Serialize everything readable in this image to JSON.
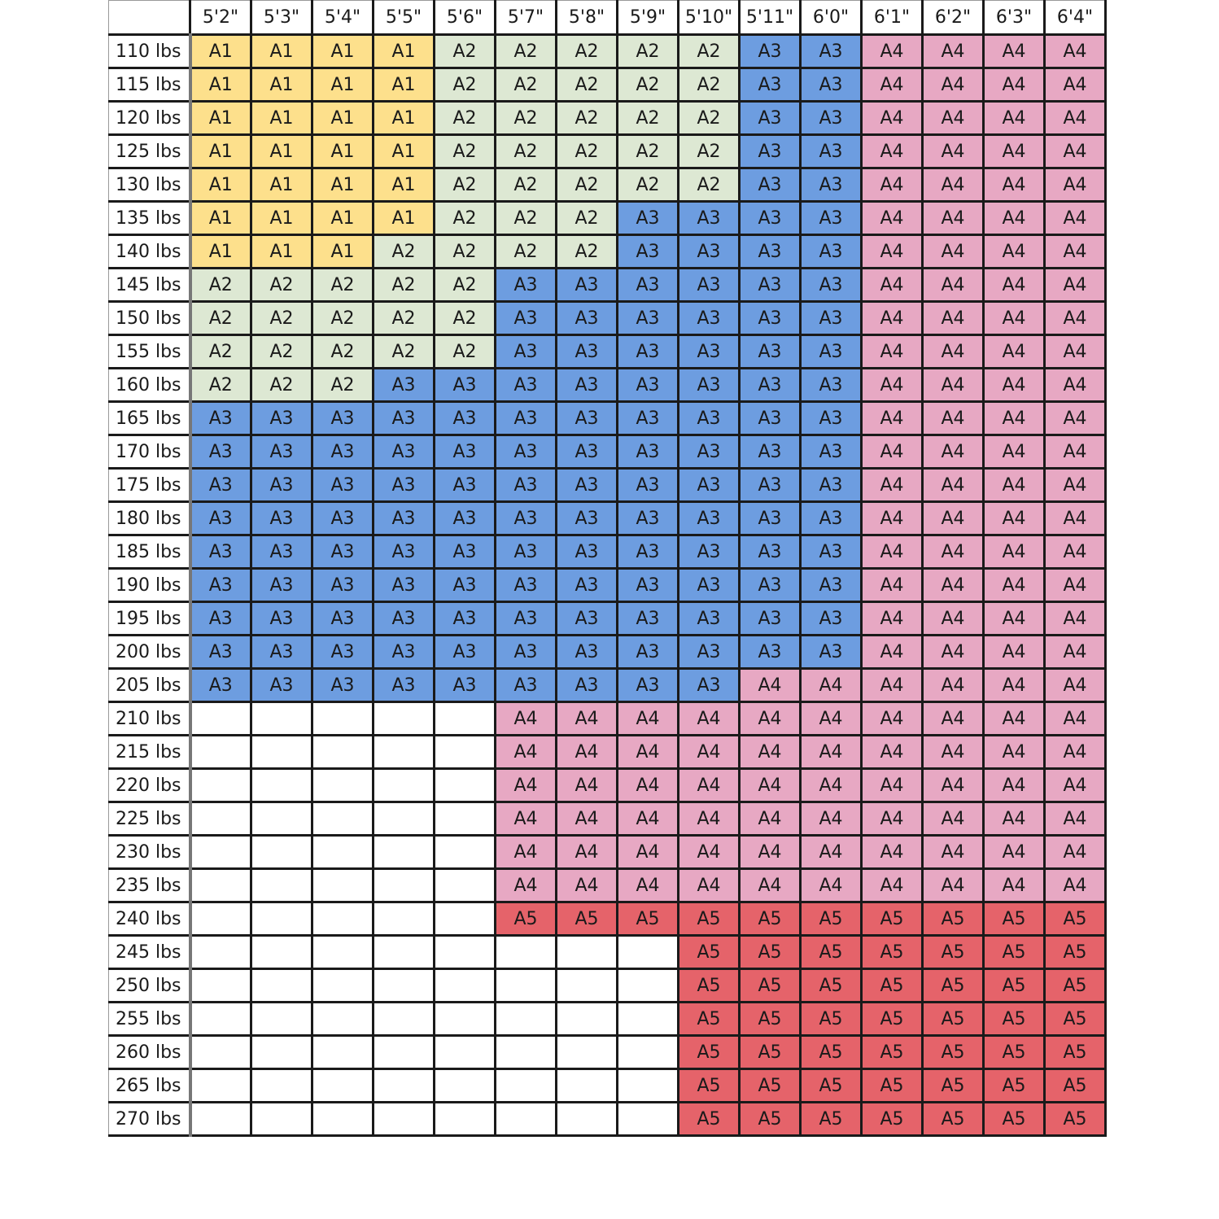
{
  "chart_data": {
    "type": "table",
    "columns": [
      "5'2\"",
      "5'3\"",
      "5'4\"",
      "5'5\"",
      "5'6\"",
      "5'7\"",
      "5'8\"",
      "5'9\"",
      "5'10\"",
      "5'11\"",
      "6'0\"",
      "6'1\"",
      "6'2\"",
      "6'3\"",
      "6'4\""
    ],
    "rows": [
      {
        "label": "110 lbs",
        "cells": [
          "A1",
          "A1",
          "A1",
          "A1",
          "A2",
          "A2",
          "A2",
          "A2",
          "A2",
          "A3",
          "A3",
          "A4",
          "A4",
          "A4",
          "A4"
        ]
      },
      {
        "label": "115 lbs",
        "cells": [
          "A1",
          "A1",
          "A1",
          "A1",
          "A2",
          "A2",
          "A2",
          "A2",
          "A2",
          "A3",
          "A3",
          "A4",
          "A4",
          "A4",
          "A4"
        ]
      },
      {
        "label": "120 lbs",
        "cells": [
          "A1",
          "A1",
          "A1",
          "A1",
          "A2",
          "A2",
          "A2",
          "A2",
          "A2",
          "A3",
          "A3",
          "A4",
          "A4",
          "A4",
          "A4"
        ]
      },
      {
        "label": "125 lbs",
        "cells": [
          "A1",
          "A1",
          "A1",
          "A1",
          "A2",
          "A2",
          "A2",
          "A2",
          "A2",
          "A3",
          "A3",
          "A4",
          "A4",
          "A4",
          "A4"
        ]
      },
      {
        "label": "130 lbs",
        "cells": [
          "A1",
          "A1",
          "A1",
          "A1",
          "A2",
          "A2",
          "A2",
          "A2",
          "A2",
          "A3",
          "A3",
          "A4",
          "A4",
          "A4",
          "A4"
        ]
      },
      {
        "label": "135 lbs",
        "cells": [
          "A1",
          "A1",
          "A1",
          "A1",
          "A2",
          "A2",
          "A2",
          "A3",
          "A3",
          "A3",
          "A3",
          "A4",
          "A4",
          "A4",
          "A4"
        ]
      },
      {
        "label": "140 lbs",
        "cells": [
          "A1",
          "A1",
          "A1",
          "A2",
          "A2",
          "A2",
          "A2",
          "A3",
          "A3",
          "A3",
          "A3",
          "A4",
          "A4",
          "A4",
          "A4"
        ]
      },
      {
        "label": "145 lbs",
        "cells": [
          "A2",
          "A2",
          "A2",
          "A2",
          "A2",
          "A3",
          "A3",
          "A3",
          "A3",
          "A3",
          "A3",
          "A4",
          "A4",
          "A4",
          "A4"
        ]
      },
      {
        "label": "150 lbs",
        "cells": [
          "A2",
          "A2",
          "A2",
          "A2",
          "A2",
          "A3",
          "A3",
          "A3",
          "A3",
          "A3",
          "A3",
          "A4",
          "A4",
          "A4",
          "A4"
        ]
      },
      {
        "label": "155 lbs",
        "cells": [
          "A2",
          "A2",
          "A2",
          "A2",
          "A2",
          "A3",
          "A3",
          "A3",
          "A3",
          "A3",
          "A3",
          "A4",
          "A4",
          "A4",
          "A4"
        ]
      },
      {
        "label": "160 lbs",
        "cells": [
          "A2",
          "A2",
          "A2",
          "A3",
          "A3",
          "A3",
          "A3",
          "A3",
          "A3",
          "A3",
          "A3",
          "A4",
          "A4",
          "A4",
          "A4"
        ]
      },
      {
        "label": "165 lbs",
        "cells": [
          "A3",
          "A3",
          "A3",
          "A3",
          "A3",
          "A3",
          "A3",
          "A3",
          "A3",
          "A3",
          "A3",
          "A4",
          "A4",
          "A4",
          "A4"
        ]
      },
      {
        "label": "170 lbs",
        "cells": [
          "A3",
          "A3",
          "A3",
          "A3",
          "A3",
          "A3",
          "A3",
          "A3",
          "A3",
          "A3",
          "A3",
          "A4",
          "A4",
          "A4",
          "A4"
        ]
      },
      {
        "label": "175 lbs",
        "cells": [
          "A3",
          "A3",
          "A3",
          "A3",
          "A3",
          "A3",
          "A3",
          "A3",
          "A3",
          "A3",
          "A3",
          "A4",
          "A4",
          "A4",
          "A4"
        ]
      },
      {
        "label": "180 lbs",
        "cells": [
          "A3",
          "A3",
          "A3",
          "A3",
          "A3",
          "A3",
          "A3",
          "A3",
          "A3",
          "A3",
          "A3",
          "A4",
          "A4",
          "A4",
          "A4"
        ]
      },
      {
        "label": "185 lbs",
        "cells": [
          "A3",
          "A3",
          "A3",
          "A3",
          "A3",
          "A3",
          "A3",
          "A3",
          "A3",
          "A3",
          "A3",
          "A4",
          "A4",
          "A4",
          "A4"
        ]
      },
      {
        "label": "190 lbs",
        "cells": [
          "A3",
          "A3",
          "A3",
          "A3",
          "A3",
          "A3",
          "A3",
          "A3",
          "A3",
          "A3",
          "A3",
          "A4",
          "A4",
          "A4",
          "A4"
        ]
      },
      {
        "label": "195 lbs",
        "cells": [
          "A3",
          "A3",
          "A3",
          "A3",
          "A3",
          "A3",
          "A3",
          "A3",
          "A3",
          "A3",
          "A3",
          "A4",
          "A4",
          "A4",
          "A4"
        ]
      },
      {
        "label": "200 lbs",
        "cells": [
          "A3",
          "A3",
          "A3",
          "A3",
          "A3",
          "A3",
          "A3",
          "A3",
          "A3",
          "A3",
          "A3",
          "A4",
          "A4",
          "A4",
          "A4"
        ]
      },
      {
        "label": "205 lbs",
        "cells": [
          "A3",
          "A3",
          "A3",
          "A3",
          "A3",
          "A3",
          "A3",
          "A3",
          "A3",
          "A4",
          "A4",
          "A4",
          "A4",
          "A4",
          "A4"
        ]
      },
      {
        "label": "210 lbs",
        "cells": [
          "",
          "",
          "",
          "",
          "",
          "A4",
          "A4",
          "A4",
          "A4",
          "A4",
          "A4",
          "A4",
          "A4",
          "A4",
          "A4"
        ]
      },
      {
        "label": "215 lbs",
        "cells": [
          "",
          "",
          "",
          "",
          "",
          "A4",
          "A4",
          "A4",
          "A4",
          "A4",
          "A4",
          "A4",
          "A4",
          "A4",
          "A4"
        ]
      },
      {
        "label": "220 lbs",
        "cells": [
          "",
          "",
          "",
          "",
          "",
          "A4",
          "A4",
          "A4",
          "A4",
          "A4",
          "A4",
          "A4",
          "A4",
          "A4",
          "A4"
        ]
      },
      {
        "label": "225 lbs",
        "cells": [
          "",
          "",
          "",
          "",
          "",
          "A4",
          "A4",
          "A4",
          "A4",
          "A4",
          "A4",
          "A4",
          "A4",
          "A4",
          "A4"
        ]
      },
      {
        "label": "230 lbs",
        "cells": [
          "",
          "",
          "",
          "",
          "",
          "A4",
          "A4",
          "A4",
          "A4",
          "A4",
          "A4",
          "A4",
          "A4",
          "A4",
          "A4"
        ]
      },
      {
        "label": "235 lbs",
        "cells": [
          "",
          "",
          "",
          "",
          "",
          "A4",
          "A4",
          "A4",
          "A4",
          "A4",
          "A4",
          "A4",
          "A4",
          "A4",
          "A4"
        ]
      },
      {
        "label": "240 lbs",
        "cells": [
          "",
          "",
          "",
          "",
          "",
          "A5",
          "A5",
          "A5",
          "A5",
          "A5",
          "A5",
          "A5",
          "A5",
          "A5",
          "A5"
        ]
      },
      {
        "label": "245 lbs",
        "cells": [
          "",
          "",
          "",
          "",
          "",
          "",
          "",
          "",
          "A5",
          "A5",
          "A5",
          "A5",
          "A5",
          "A5",
          "A5"
        ]
      },
      {
        "label": "250 lbs",
        "cells": [
          "",
          "",
          "",
          "",
          "",
          "",
          "",
          "",
          "A5",
          "A5",
          "A5",
          "A5",
          "A5",
          "A5",
          "A5"
        ]
      },
      {
        "label": "255 lbs",
        "cells": [
          "",
          "",
          "",
          "",
          "",
          "",
          "",
          "",
          "A5",
          "A5",
          "A5",
          "A5",
          "A5",
          "A5",
          "A5"
        ]
      },
      {
        "label": "260 lbs",
        "cells": [
          "",
          "",
          "",
          "",
          "",
          "",
          "",
          "",
          "A5",
          "A5",
          "A5",
          "A5",
          "A5",
          "A5",
          "A5"
        ]
      },
      {
        "label": "265 lbs",
        "cells": [
          "",
          "",
          "",
          "",
          "",
          "",
          "",
          "",
          "A5",
          "A5",
          "A5",
          "A5",
          "A5",
          "A5",
          "A5"
        ]
      },
      {
        "label": "270 lbs",
        "cells": [
          "",
          "",
          "",
          "",
          "",
          "",
          "",
          "",
          "A5",
          "A5",
          "A5",
          "A5",
          "A5",
          "A5",
          "A5"
        ]
      }
    ],
    "size_colors": {
      "A1": "#fde08c",
      "A2": "#dde8d3",
      "A3": "#6d9de0",
      "A4": "#e7a8c3",
      "A5": "#e5636a",
      "": "#ffffff"
    }
  }
}
